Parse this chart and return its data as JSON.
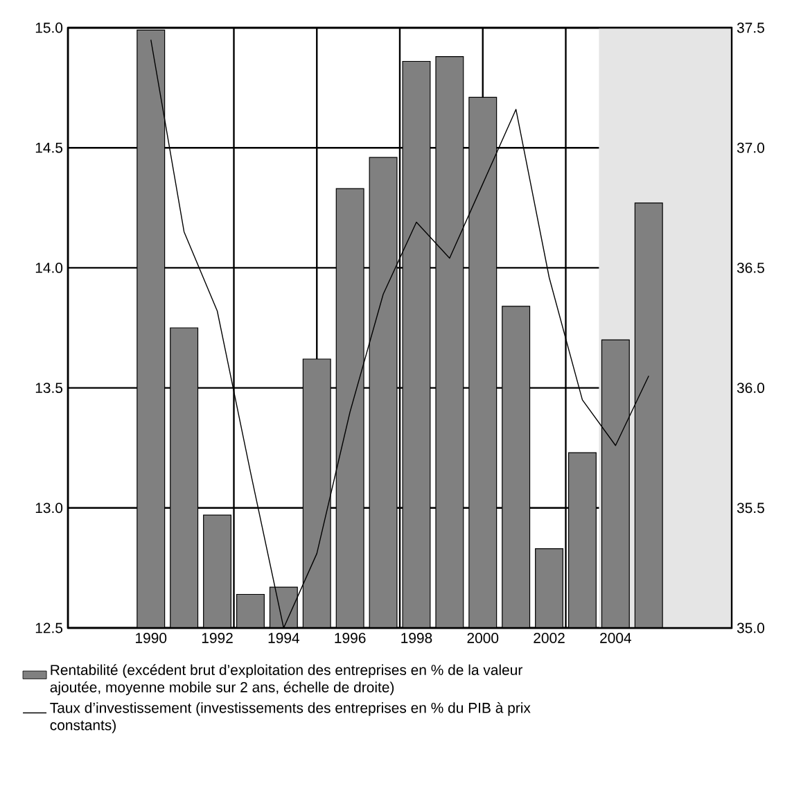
{
  "chart_data": {
    "type": "bar",
    "x": [
      1990,
      1991,
      1992,
      1993,
      1994,
      1995,
      1996,
      1997,
      1998,
      1999,
      2000,
      2001,
      2002,
      2003,
      2004,
      2005
    ],
    "series": [
      {
        "name": "Rentabilité (excédent brut d’exploitation des entreprises en % de la valeur ajoutée, moyenne mobile sur 2 ans, échelle de droite)",
        "axis": "y2",
        "color": "#808080",
        "values": [
          37.49,
          36.25,
          35.47,
          35.14,
          35.17,
          36.12,
          36.83,
          36.96,
          37.36,
          37.38,
          37.21,
          36.34,
          35.33,
          35.73,
          36.2,
          36.77
        ]
      },
      {
        "name": "Taux d’investissement (investissements des entreprises en % du PIB à prix constants)",
        "type": "line",
        "color": "#000000",
        "values": [
          14.95,
          14.15,
          13.82,
          13.15,
          12.5,
          12.81,
          13.4,
          13.89,
          14.19,
          14.04,
          14.35,
          14.66,
          13.96,
          13.45,
          13.26,
          13.55
        ]
      }
    ],
    "xlim": [
      1987.5,
      2007.5
    ],
    "xticks": [
      1990,
      1992,
      1994,
      1996,
      1998,
      2000,
      2002,
      2004,
      {
        "value": 1992.5,
        "label": null
      },
      {
        "value": 1995,
        "label": null
      },
      {
        "value": 1997.5,
        "label": null
      },
      {
        "value": 2000,
        "label": null
      },
      {
        "value": 2002.5,
        "label": null
      },
      {
        "value": 2005,
        "label": null
      }
    ],
    "ylim": [
      12.5,
      15
    ],
    "yticks": [
      12.5,
      {
        "value": 13,
        "label": "13.0"
      },
      13.5,
      {
        "value": 14,
        "label": "14.0"
      },
      14.5,
      {
        "value": 15,
        "label": "15.0"
      }
    ],
    "y2lim": [
      35,
      37.5
    ],
    "y2ticks": [
      {
        "value": 35,
        "label": "35.0"
      },
      35.5,
      {
        "value": 36,
        "label": "36.0"
      },
      36.5,
      {
        "value": 37,
        "label": "37.0"
      },
      37.5
    ],
    "bands": [
      {
        "axis": "x",
        "from": 2003.5,
        "to": 2007.5,
        "color": "#e5e5e5"
      }
    ],
    "grid": true,
    "legend": "bottom"
  }
}
